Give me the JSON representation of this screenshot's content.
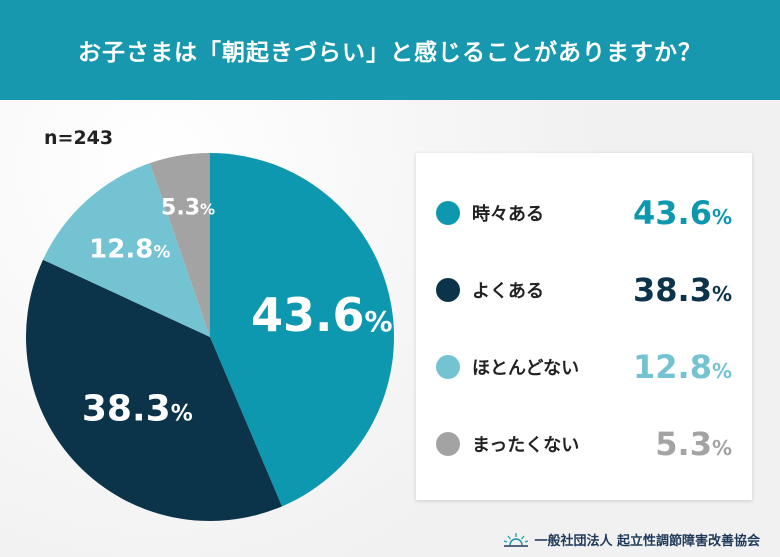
{
  "header": {
    "title": "お子さまは「朝起きづらい」と感じることがありますか？"
  },
  "sample": "n=243",
  "chart_data": {
    "type": "pie",
    "title": "お子さまは「朝起きづらい」と感じることがありますか？",
    "categories": [
      "時々ある",
      "よくある",
      "ほとんどない",
      "まったくない"
    ],
    "values": [
      43.6,
      38.3,
      12.8,
      5.3
    ],
    "unit": "%",
    "colors": [
      "#0d98b0",
      "#0b3349",
      "#74c3d3",
      "#a3a3a3"
    ],
    "labels": [
      "43.6",
      "38.3",
      "12.8",
      "5.3"
    ],
    "legend": "right"
  },
  "footer": {
    "org": "一般社団法人 起立性調節障害改善協会",
    "logo": "sunrise-logo"
  }
}
